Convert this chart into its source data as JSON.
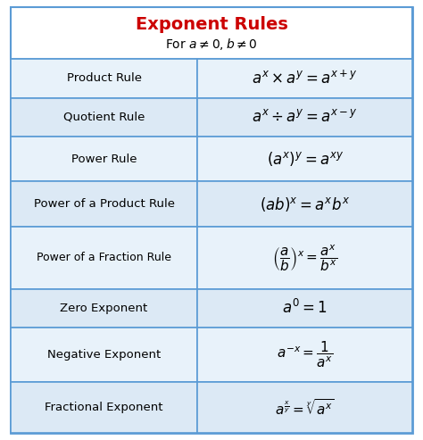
{
  "title": "Exponent Rules",
  "subtitle": "For $a \\neq 0, b \\neq 0$",
  "title_color": "#cc0000",
  "row_bg_even": "#dce9f5",
  "row_bg_odd": "#e8f2fa",
  "header_bg": "#ffffff",
  "border_color": "#5b9bd5",
  "text_color": "#000000",
  "col_split": 0.465,
  "rows": [
    {
      "label": "Product Rule",
      "formula": "$a^x \\times a^y = a^{x+y}$",
      "row_weight": 1.0
    },
    {
      "label": "Quotient Rule",
      "formula": "$a^x \\div a^y = a^{x-y}$",
      "row_weight": 1.0
    },
    {
      "label": "Power Rule",
      "formula": "$\\left(a^x\\right)^{y} = a^{xy}$",
      "row_weight": 1.15
    },
    {
      "label": "Power of a Product Rule",
      "formula": "$\\left(ab\\right)^{x} = a^{x}b^{x}$",
      "row_weight": 1.15
    },
    {
      "label": "Power of a Fraction Rule",
      "formula": "$\\left(\\dfrac{a}{b}\\right)^{x} = \\dfrac{a^x}{b^x}$",
      "row_weight": 1.6
    },
    {
      "label": "Zero Exponent",
      "formula": "$a^{0} = 1$",
      "row_weight": 1.0
    },
    {
      "label": "Negative Exponent",
      "formula": "$a^{-x} = \\dfrac{1}{a^x}$",
      "row_weight": 1.4
    },
    {
      "label": "Fractional Exponent",
      "formula": "$a^{\\frac{x}{y}} = \\sqrt[y]{a^x}$",
      "row_weight": 1.3
    }
  ],
  "figsize": [
    4.74,
    4.93
  ],
  "dpi": 100
}
